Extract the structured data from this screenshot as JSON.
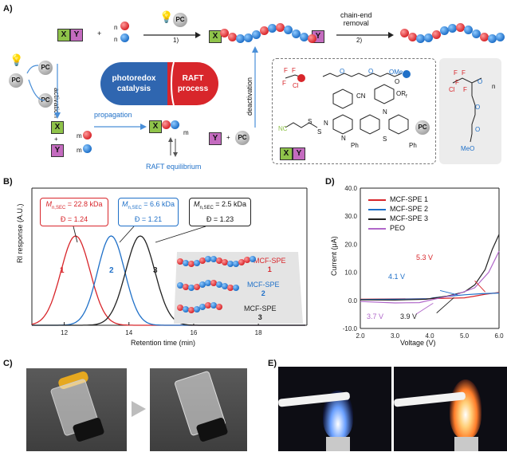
{
  "panels": {
    "a": "A)",
    "b": "B)",
    "c": "C)",
    "d": "D)",
    "e": "E)"
  },
  "scheme": {
    "x_label": "X",
    "y_label": "Y",
    "pc": "PC",
    "plus": "+",
    "n": "n",
    "m": "m",
    "step1": "1)",
    "step2": "2)",
    "chain_end_removal": "chain-end\nremoval",
    "activation": "activation",
    "deactivation": "deactivation",
    "propagation": "propagation",
    "raft_equilibrium": "RAFT equilibrium",
    "photoredox": "photoredox\ncatalysis",
    "raft": "RAFT\nprocess",
    "monomer_label": "OMe",
    "cn": "CN",
    "cn2": "NC",
    "or": "OR",
    "ph": "Ph",
    "cl": "Cl",
    "f": "F",
    "meo": "MeO",
    "n_n": "n",
    "n_atom": "N",
    "s_atom": "S",
    "o_atom": "O",
    "sub_f": "f"
  },
  "chart_b": {
    "ylabel": "RI response (A.U.)",
    "xlabel": "Retention time (min)",
    "xticks": [
      "12",
      "14",
      "16",
      "18"
    ],
    "annotations": [
      {
        "line1": "M",
        "sub": "n,SEC",
        "val": " = 22.8 kDa",
        "line2": "Đ = 1.24",
        "color": "#d8262b"
      },
      {
        "line1": "M",
        "sub": "n,SEC",
        "val": " = 6.6 kDa",
        "line2": "Đ = 1.21",
        "color": "#1f70c8"
      },
      {
        "line1": "M",
        "sub": "n,SEC",
        "val": " = 2.5 kDa",
        "line2": "Đ = 1.23",
        "color": "#111111"
      }
    ],
    "peak_labels": [
      "1",
      "2",
      "3"
    ],
    "legend": [
      {
        "name": "MCF-SPE",
        "num": "1",
        "color": "#d8262b"
      },
      {
        "name": "MCF-SPE",
        "num": "2",
        "color": "#1f70c8"
      },
      {
        "name": "MCF-SPE",
        "num": "3",
        "color": "#222222"
      }
    ]
  },
  "chart_data": {
    "type": "line",
    "title": "",
    "xlabel": "Voltage (V)",
    "ylabel": "Current (μA)",
    "xlim": [
      2.0,
      6.0
    ],
    "ylim": [
      -10.0,
      40.0
    ],
    "xticks": [
      "2.0",
      "3.0",
      "4.0",
      "5.0",
      "6.0"
    ],
    "yticks": [
      "-10.0",
      "0.0",
      "10.0",
      "20.0",
      "30.0",
      "40.0"
    ],
    "legend_position": "top-left",
    "series": [
      {
        "name": "MCF-SPE 1",
        "bold": "1",
        "color": "#d8262b",
        "x": [
          2.0,
          3.0,
          4.0,
          5.0,
          5.3,
          5.6,
          6.0
        ],
        "y": [
          0.4,
          0.5,
          0.6,
          0.9,
          1.5,
          2.2,
          2.8
        ]
      },
      {
        "name": "MCF-SPE 2",
        "bold": "2",
        "color": "#1f70c8",
        "x": [
          2.0,
          3.0,
          4.0,
          4.1,
          4.5,
          5.0,
          5.5,
          6.0
        ],
        "y": [
          0.3,
          0.4,
          0.6,
          0.9,
          1.4,
          2.0,
          2.4,
          2.6
        ]
      },
      {
        "name": "MCF-SPE 3",
        "bold": "3",
        "color": "#222222",
        "x": [
          2.0,
          3.0,
          3.9,
          4.5,
          5.0,
          5.3,
          5.6,
          5.8,
          6.0
        ],
        "y": [
          0.2,
          0.1,
          0.4,
          1.5,
          3.0,
          5.5,
          11.0,
          18.0,
          23.5
        ]
      },
      {
        "name": "PEO",
        "bold": "",
        "color": "#b067c9",
        "x": [
          2.0,
          3.0,
          3.7,
          4.2,
          4.8,
          5.3,
          5.7,
          6.0
        ],
        "y": [
          -0.4,
          -0.9,
          -0.8,
          0.6,
          2.2,
          4.5,
          10.0,
          17.5
        ]
      }
    ],
    "annotations": [
      {
        "text": "5.3 V",
        "color": "#d8262b"
      },
      {
        "text": "4.1 V",
        "color": "#1f70c8"
      },
      {
        "text": "3.7 V",
        "color": "#b067c9"
      },
      {
        "text": "3.9 V",
        "color": "#222222"
      }
    ]
  },
  "colors": {
    "red": "#d8262b",
    "blue": "#1f70c8",
    "green": "#8fc34a",
    "purple": "#c46bbf"
  }
}
